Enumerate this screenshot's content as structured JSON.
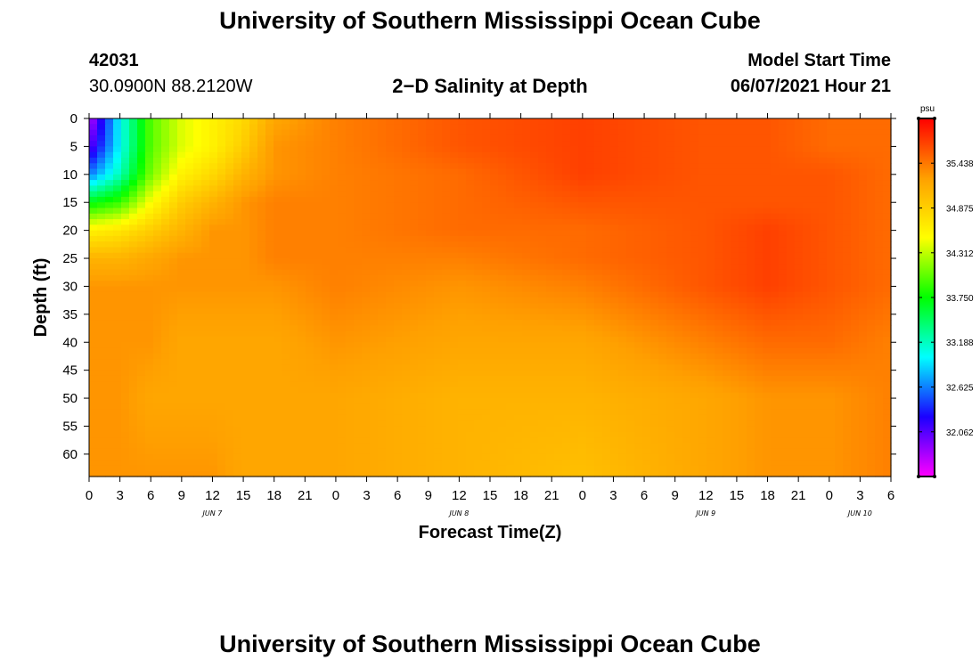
{
  "header": {
    "title": "University of Southern Mississippi Ocean Cube",
    "station_id": "42031",
    "station_coords": "30.0900N  88.2120W",
    "subtitle": "2−D Salinity at Depth",
    "model_start_label": "Model Start Time",
    "model_start_value": "06/07/2021 Hour 21"
  },
  "footer": {
    "title": "University of Southern Mississippi Ocean Cube"
  },
  "chart_data": {
    "type": "heatmap",
    "title": "2−D Salinity at Depth",
    "xlabel": "Forecast Time(Z)",
    "ylabel": "Depth (ft)",
    "x_unit": "hours since 06/07/2021 00Z",
    "xlim": [
      0,
      78
    ],
    "ylim": [
      0,
      64
    ],
    "y_inverted": true,
    "x_ticks": [
      {
        "value": 0,
        "label": "0"
      },
      {
        "value": 3,
        "label": "3"
      },
      {
        "value": 6,
        "label": "6"
      },
      {
        "value": 9,
        "label": "9"
      },
      {
        "value": 12,
        "label": "12"
      },
      {
        "value": 15,
        "label": "15"
      },
      {
        "value": 18,
        "label": "18"
      },
      {
        "value": 21,
        "label": "21"
      },
      {
        "value": 24,
        "label": "0"
      },
      {
        "value": 27,
        "label": "3"
      },
      {
        "value": 30,
        "label": "6"
      },
      {
        "value": 33,
        "label": "9"
      },
      {
        "value": 36,
        "label": "12"
      },
      {
        "value": 39,
        "label": "15"
      },
      {
        "value": 42,
        "label": "18"
      },
      {
        "value": 45,
        "label": "21"
      },
      {
        "value": 48,
        "label": "0"
      },
      {
        "value": 51,
        "label": "3"
      },
      {
        "value": 54,
        "label": "6"
      },
      {
        "value": 57,
        "label": "9"
      },
      {
        "value": 60,
        "label": "12"
      },
      {
        "value": 63,
        "label": "15"
      },
      {
        "value": 66,
        "label": "18"
      },
      {
        "value": 69,
        "label": "21"
      },
      {
        "value": 72,
        "label": "0"
      },
      {
        "value": 75,
        "label": "3"
      },
      {
        "value": 78,
        "label": "6"
      }
    ],
    "day_labels": [
      {
        "value": 12,
        "label": "JUN 7"
      },
      {
        "value": 36,
        "label": "JUN 8"
      },
      {
        "value": 60,
        "label": "JUN 9"
      },
      {
        "value": 75,
        "label": "JUN 10"
      }
    ],
    "y_ticks": [
      0,
      5,
      10,
      15,
      20,
      25,
      30,
      35,
      40,
      45,
      50,
      55,
      60
    ],
    "colorbar": {
      "unit": "psu",
      "min": 31.5,
      "max": 36.0,
      "ticks": [
        "32.062",
        "32.625",
        "33.188",
        "33.750",
        "34.312",
        "34.875",
        "35.438"
      ],
      "colors": [
        "#ff00ff",
        "#1b00ff",
        "#00ffff",
        "#00ff00",
        "#ffff00",
        "#ffa000",
        "#ff0000"
      ]
    },
    "field_description": "Fresher water (about 31.6–34.5 psu) at 0–20 ft in the first hours; a saltier core (~35.6–35.8 psu) near 0–35 ft from hour 24 to 78; intermediate values (~35.0–35.3 psu) below 40 ft.",
    "profiles": [
      {
        "hour": 0,
        "depths": [
          0,
          5,
          10,
          15,
          20,
          25,
          30,
          40,
          50,
          64
        ],
        "values": [
          31.7,
          32.0,
          32.6,
          33.7,
          34.6,
          35.1,
          35.3,
          35.3,
          35.3,
          35.3
        ]
      },
      {
        "hour": 3,
        "depths": [
          0,
          5,
          10,
          15,
          20,
          25,
          30,
          40,
          50,
          64
        ],
        "values": [
          33.0,
          33.0,
          33.2,
          33.9,
          34.7,
          35.1,
          35.3,
          35.3,
          35.3,
          35.3
        ]
      },
      {
        "hour": 6,
        "depths": [
          0,
          5,
          10,
          15,
          20,
          25,
          30,
          40,
          50,
          64
        ],
        "values": [
          34.0,
          34.0,
          34.1,
          34.5,
          34.9,
          35.2,
          35.3,
          35.3,
          35.2,
          35.3
        ]
      },
      {
        "hour": 9,
        "depths": [
          0,
          5,
          10,
          15,
          20,
          25,
          30,
          40,
          50,
          64
        ],
        "values": [
          34.4,
          34.4,
          34.6,
          34.9,
          35.1,
          35.3,
          35.3,
          35.2,
          35.2,
          35.3
        ]
      },
      {
        "hour": 12,
        "depths": [
          0,
          5,
          10,
          15,
          20,
          25,
          30,
          40,
          50,
          64
        ],
        "values": [
          34.6,
          34.6,
          34.8,
          35.1,
          35.3,
          35.3,
          35.3,
          35.2,
          35.2,
          35.3
        ]
      },
      {
        "hour": 15,
        "depths": [
          0,
          5,
          10,
          15,
          20,
          25,
          30,
          40,
          50,
          64
        ],
        "values": [
          34.8,
          34.9,
          35.1,
          35.3,
          35.3,
          35.3,
          35.3,
          35.2,
          35.2,
          35.2
        ]
      },
      {
        "hour": 18,
        "depths": [
          0,
          5,
          10,
          15,
          20,
          25,
          30,
          40,
          50,
          64
        ],
        "values": [
          35.2,
          35.3,
          35.3,
          35.4,
          35.4,
          35.4,
          35.3,
          35.2,
          35.2,
          35.2
        ]
      },
      {
        "hour": 24,
        "depths": [
          0,
          5,
          10,
          15,
          20,
          25,
          30,
          40,
          50,
          64
        ],
        "values": [
          35.4,
          35.4,
          35.4,
          35.4,
          35.4,
          35.4,
          35.4,
          35.3,
          35.2,
          35.2
        ]
      },
      {
        "hour": 36,
        "depths": [
          0,
          5,
          10,
          15,
          20,
          25,
          30,
          40,
          50,
          64
        ],
        "values": [
          35.6,
          35.6,
          35.5,
          35.5,
          35.5,
          35.4,
          35.3,
          35.2,
          35.1,
          35.1
        ]
      },
      {
        "hour": 48,
        "depths": [
          0,
          5,
          10,
          15,
          20,
          25,
          30,
          40,
          50,
          64
        ],
        "values": [
          35.7,
          35.7,
          35.7,
          35.6,
          35.5,
          35.5,
          35.4,
          35.2,
          35.1,
          35.0
        ]
      },
      {
        "hour": 60,
        "depths": [
          0,
          5,
          10,
          15,
          20,
          25,
          30,
          40,
          50,
          64
        ],
        "values": [
          35.6,
          35.6,
          35.6,
          35.6,
          35.6,
          35.6,
          35.6,
          35.4,
          35.2,
          35.2
        ]
      },
      {
        "hour": 66,
        "depths": [
          0,
          5,
          10,
          15,
          20,
          25,
          30,
          40,
          50,
          64
        ],
        "values": [
          35.6,
          35.6,
          35.6,
          35.6,
          35.7,
          35.7,
          35.7,
          35.5,
          35.3,
          35.3
        ]
      },
      {
        "hour": 72,
        "depths": [
          0,
          5,
          10,
          15,
          20,
          25,
          30,
          40,
          50,
          64
        ],
        "values": [
          35.5,
          35.5,
          35.6,
          35.6,
          35.6,
          35.6,
          35.6,
          35.5,
          35.3,
          35.3
        ]
      },
      {
        "hour": 78,
        "depths": [
          0,
          5,
          10,
          15,
          20,
          25,
          30,
          40,
          50,
          64
        ],
        "values": [
          35.5,
          35.5,
          35.5,
          35.5,
          35.5,
          35.5,
          35.5,
          35.4,
          35.4,
          35.4
        ]
      }
    ]
  }
}
